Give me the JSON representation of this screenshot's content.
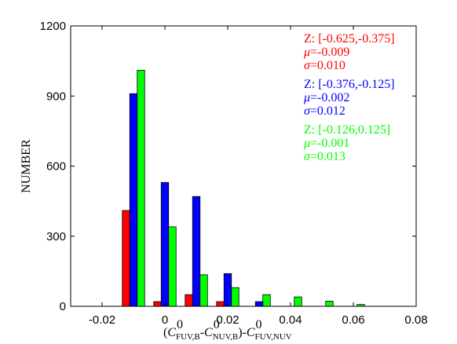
{
  "chart_data": {
    "type": "bar",
    "ylabel": "NUMBER",
    "xlabel": {
      "prefix": "(",
      "term1": "C",
      "sup1": "0",
      "sub1": "FUV,B",
      "minus1": "-",
      "term2": "C",
      "sup2": "0",
      "sub2": "NUV,B",
      "close": ")-",
      "term3": "C",
      "sup3": "0",
      "sub3": "FUV,NUV"
    },
    "xlim": [
      -0.03,
      0.08
    ],
    "ylim": [
      0,
      1200
    ],
    "xticks": [
      "-0.02",
      "0",
      "0.02",
      "0.04",
      "0.06",
      "0.08"
    ],
    "xtick_values": [
      -0.02,
      0,
      0.02,
      0.04,
      0.06,
      0.08
    ],
    "yticks": [
      "0",
      "300",
      "600",
      "900",
      "1200"
    ],
    "ytick_values": [
      0,
      300,
      600,
      900,
      1200
    ],
    "bin_centers": [
      -0.01,
      0.0,
      0.01,
      0.02,
      0.03,
      0.04,
      0.05,
      0.06
    ],
    "series": [
      {
        "color": "#ff0000",
        "values": [
          410,
          20,
          50,
          20,
          0,
          0,
          0,
          0
        ],
        "legend": {
          "range": "Z: [-0.625,-0.375]",
          "mu_sym": "μ",
          "mu_val": "=-0.009",
          "sigma_sym": "σ",
          "sigma_val": "=0.010"
        }
      },
      {
        "color": "#0000ff",
        "values": [
          910,
          530,
          470,
          140,
          20,
          0,
          0,
          0
        ],
        "legend": {
          "range": "Z: [-0.376,-0.125]",
          "mu_sym": "μ",
          "mu_val": "=-0.002",
          "sigma_sym": "σ",
          "sigma_val": "=0.012"
        }
      },
      {
        "color": "#00ff00",
        "values": [
          1010,
          340,
          135,
          80,
          50,
          40,
          22,
          8
        ],
        "legend": {
          "range": "Z: [-0.126,0.125]",
          "mu_sym": "μ",
          "mu_val": "=-0.001",
          "sigma_sym": "σ",
          "sigma_val": "=0.013"
        }
      }
    ],
    "grid": false,
    "legend_position": "top-right"
  }
}
